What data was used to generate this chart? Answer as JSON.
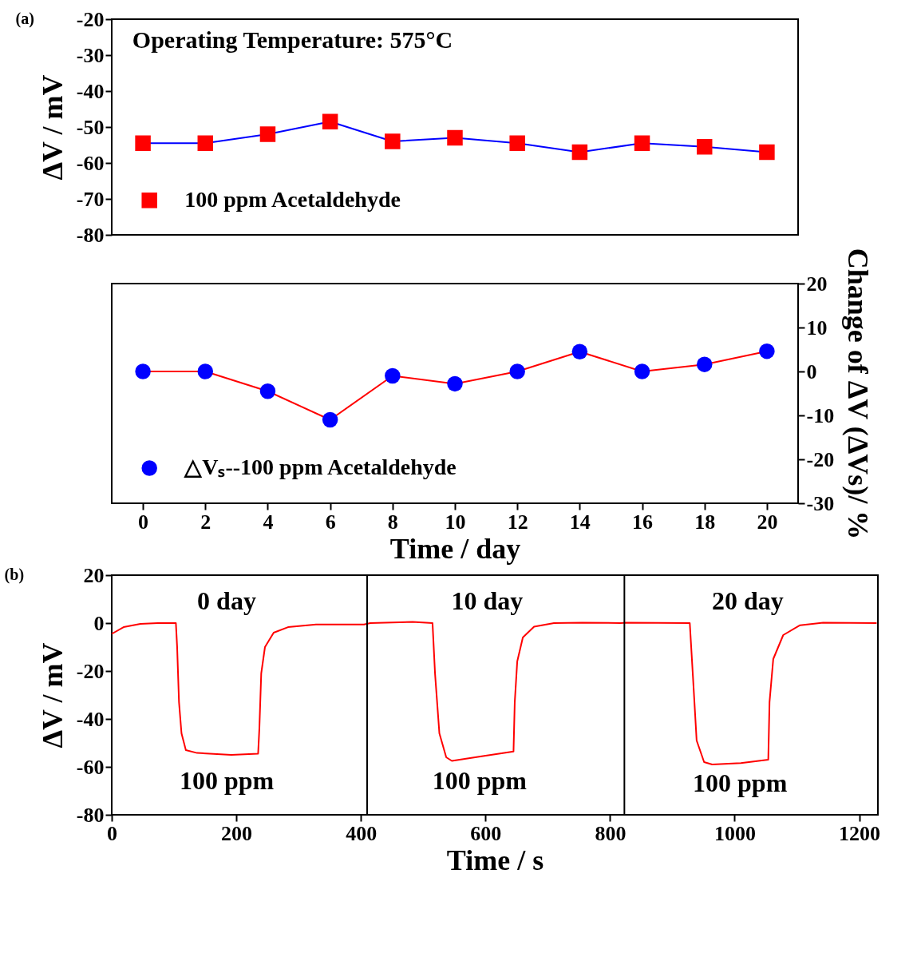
{
  "chart_data": [
    {
      "type": "line",
      "ylabel": "ΔV / mV",
      "x": [
        0,
        2,
        4,
        6,
        8,
        10,
        12,
        14,
        16,
        18,
        20
      ],
      "xlim": [
        -1,
        21
      ],
      "ylim": [
        -80,
        -20
      ],
      "yticks": [
        -80,
        -70,
        -60,
        -50,
        -40,
        -30,
        -20
      ],
      "tick_labels": "y",
      "marker": "square",
      "legend": "bottom left",
      "annotations": [
        "(a)",
        "Operating Temperature: 575°C"
      ],
      "series": [
        {
          "name": "100 ppm Acetaldehyde",
          "color": "#0000ff",
          "colors": [
            "#ff0000",
            "#ff0000",
            "#ff0000",
            "#ff0000",
            "#ff0000",
            "#ff0000",
            "#ff0000",
            "#ff0000",
            "#ff0000",
            "#ff0000",
            "#ff0000"
          ],
          "values": [
            -54.5,
            -54.5,
            -52,
            -48.5,
            -54,
            -53,
            -54.5,
            -57,
            -54.5,
            -55.5,
            -57
          ]
        }
      ]
    },
    {
      "type": "line",
      "xlabel": "Time / day",
      "y2label": "Change of ΔV (ΔVs)/ %",
      "x": [
        0,
        2,
        4,
        6,
        8,
        10,
        12,
        14,
        16,
        18,
        20
      ],
      "xlim": [
        -1,
        21
      ],
      "xticks": [
        0,
        2,
        4,
        6,
        8,
        10,
        12,
        14,
        16,
        18,
        20
      ],
      "y2lim": [
        -30,
        20
      ],
      "y2ticks": [
        -30,
        -20,
        -10,
        0,
        10,
        20
      ],
      "marker": "circle",
      "legend": "bottom left",
      "series": [
        {
          "name": "△Vₛ--100 ppm Acetaldehyde",
          "axis": "y2",
          "color": "#ff0000",
          "colors": [
            "#0000ff",
            "#0000ff",
            "#0000ff",
            "#0000ff",
            "#0000ff",
            "#0000ff",
            "#0000ff",
            "#0000ff",
            "#0000ff",
            "#0000ff",
            "#0000ff"
          ],
          "values": [
            0,
            0,
            -4.5,
            -11,
            -1,
            -2.8,
            0,
            4.5,
            0,
            1.6,
            4.6
          ]
        }
      ]
    },
    {
      "type": "line",
      "xlabel": "Time / s",
      "ylabel": "ΔV / mV",
      "xlim": [
        0,
        1230
      ],
      "xticks": [
        0,
        200,
        400,
        600,
        800,
        {
          "value": 1000,
          "label": "1000"
        },
        {
          "value": 1200,
          "label": "1200"
        }
      ],
      "ylim": [
        -80,
        20
      ],
      "yticks": [
        -80,
        -60,
        -40,
        -20,
        0,
        20
      ],
      "ref_lines": [
        {
          "axis": "x",
          "value": 410,
          "color": "#000000"
        },
        {
          "axis": "x",
          "value": 823,
          "color": "#000000"
        }
      ],
      "annotations": [
        "(b)",
        "0 day",
        "10 day",
        "20 day",
        "100 ppm",
        "100 ppm",
        "100 ppm"
      ],
      "series": [
        {
          "color": "#ff0000",
          "x": [
            0,
            19,
            46,
            74,
            103,
            105,
            108,
            112,
            119,
            137,
            192,
            235,
            237,
            240,
            246,
            260,
            283,
            328,
            405,
            415,
            483,
            515,
            519,
            526,
            537,
            546,
            596,
            645,
            647,
            651,
            660,
            678,
            710,
            755,
            817,
            826,
            928,
            933,
            939,
            951,
            964,
            1010,
            1054,
            1056,
            1062,
            1078,
            1105,
            1142,
            1228
          ],
          "values": [
            -4.5,
            -1.7,
            -0.3,
            0,
            0,
            -10,
            -33,
            -46,
            -53,
            -54.2,
            -55,
            -54.5,
            -44,
            -21,
            -10,
            -4,
            -1.7,
            -0.6,
            -0.6,
            0,
            0.5,
            0,
            -21,
            -46,
            -56,
            -57.5,
            -55.5,
            -53.6,
            -33,
            -16,
            -6,
            -1.5,
            0,
            0.2,
            0,
            0.2,
            0,
            -22,
            -49,
            -58,
            -59,
            -58.4,
            -57,
            -33,
            -15,
            -5,
            -0.9,
            0.2,
            0
          ]
        }
      ]
    }
  ]
}
